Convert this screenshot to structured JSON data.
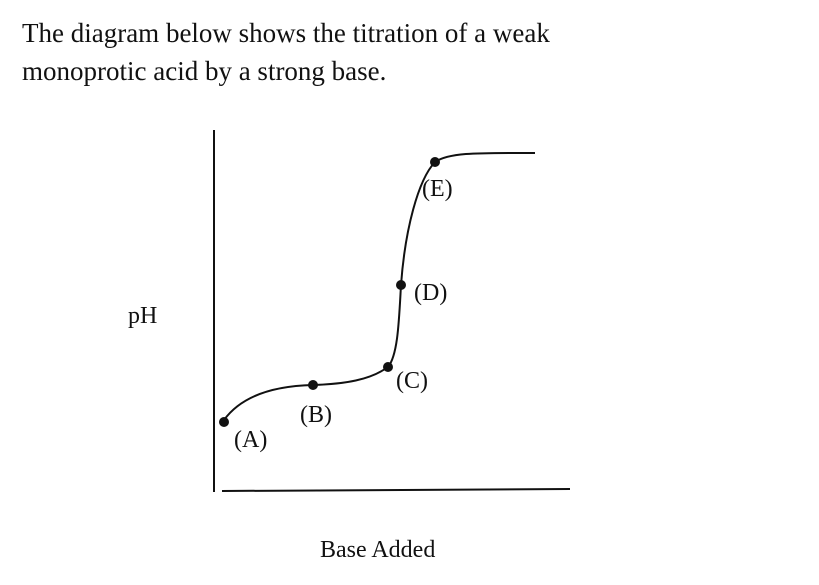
{
  "intro": {
    "lines": [
      "The diagram below shows the titration of a weak",
      "monoprotic acid by a strong base."
    ]
  },
  "axes": {
    "y_label": "pH",
    "x_label": "Base Added"
  },
  "points": [
    {
      "label": "(A)"
    },
    {
      "label": "(B)"
    },
    {
      "label": "(C)"
    },
    {
      "label": "(D)"
    },
    {
      "label": "(E)"
    }
  ]
}
